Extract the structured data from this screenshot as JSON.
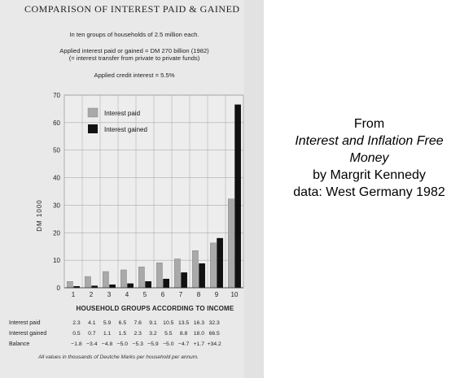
{
  "chart_data": {
    "type": "bar",
    "title": "Comparison of Interest Paid & Gained",
    "header_lines": [
      "In ten groups of households of 2.5 million each.",
      "Applied interest paid or gained = DM 270 billion (1982)",
      "(= interest transfer from private to private funds)",
      "Applied credit interest = 5.5%"
    ],
    "xlabel": "HOUSEHOLD GROUPS ACCORDING TO INCOME",
    "ylabel": "DM 1000",
    "ylim": [
      0,
      70
    ],
    "yticks": [
      0,
      10,
      20,
      30,
      40,
      50,
      60,
      70
    ],
    "categories": [
      "1",
      "2",
      "3",
      "4",
      "5",
      "6",
      "7",
      "8",
      "9",
      "10"
    ],
    "series": [
      {
        "name": "Interest paid",
        "color": "#a9a9a9",
        "values": [
          2.3,
          4.1,
          5.9,
          6.5,
          7.6,
          9.1,
          10.5,
          13.5,
          16.3,
          32.3
        ]
      },
      {
        "name": "Interest gained",
        "color": "#111111",
        "values": [
          0.5,
          0.7,
          1.1,
          1.5,
          2.3,
          3.2,
          5.5,
          8.8,
          18.0,
          66.5
        ]
      }
    ],
    "legend": "top-left",
    "grid": true,
    "table": {
      "rows": [
        {
          "label": "Interest paid",
          "values": [
            "2.3",
            "4.1",
            "5.9",
            "6.5",
            "7.6",
            "9.1",
            "10.5",
            "13.5",
            "16.3",
            "32.3"
          ]
        },
        {
          "label": "Interest gained",
          "values": [
            "0.5",
            "0.7",
            "1.1",
            "1.5",
            "2.3",
            "3.2",
            "5.5",
            "8.8",
            "18.0",
            "66.5"
          ]
        },
        {
          "label": "Balance",
          "values": [
            "−1.8",
            "−3.4",
            "−4.8",
            "−5.0",
            "−5.3",
            "−5.9",
            "−5.0",
            "−4.7",
            "+1.7",
            "+34.2"
          ]
        }
      ],
      "footnote": "All values in thousands of Deutche Marks per household per annum."
    }
  },
  "caption": {
    "line1": "From",
    "book_title_1": "Interest and Inflation Free",
    "book_title_2": "Money",
    "author": "by Margrit Kennedy",
    "source": "data: West Germany 1982"
  }
}
